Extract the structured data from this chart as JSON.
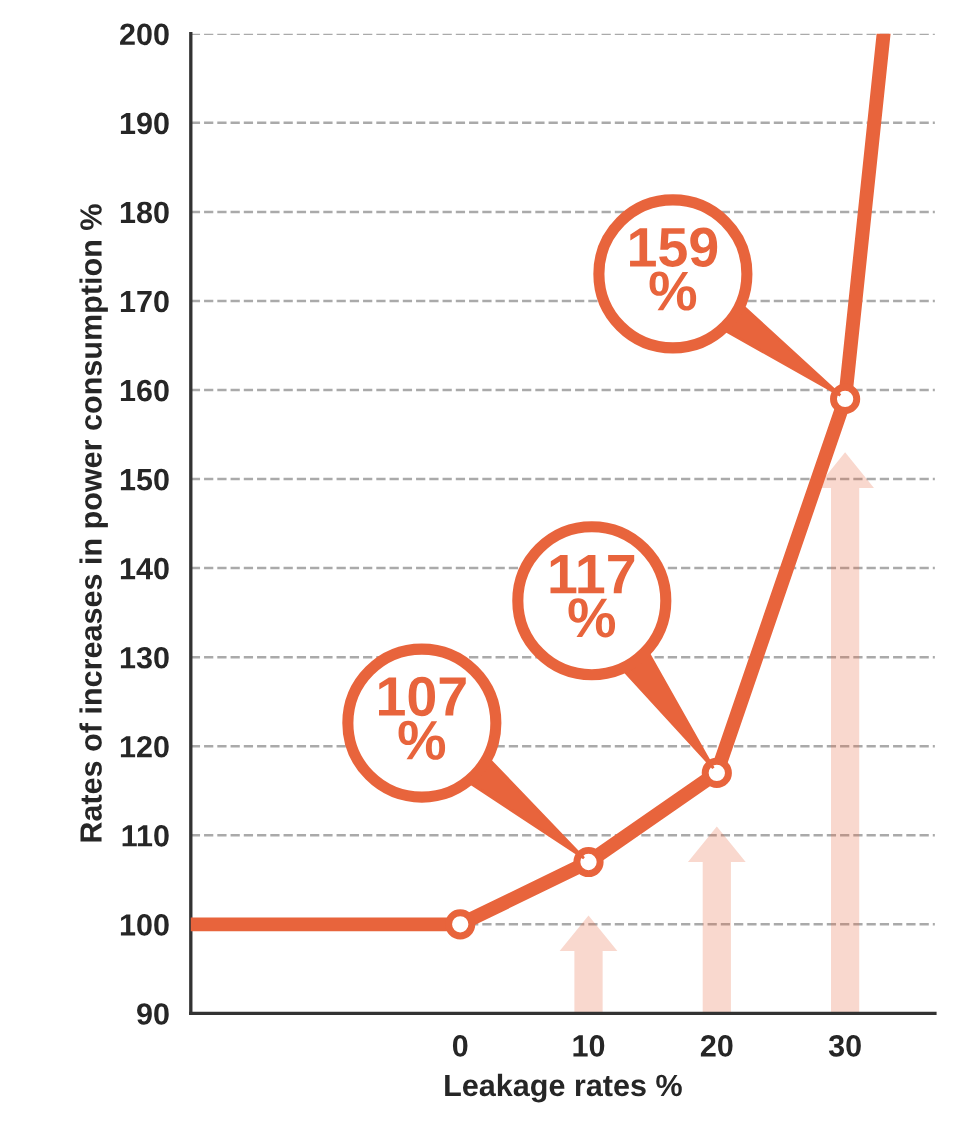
{
  "chart_data": {
    "type": "line",
    "xlabel": "Leakage rates %",
    "ylabel": "Rates of increases in power consumption %",
    "xlim": [
      -21,
      37
    ],
    "xticks": [
      0,
      10,
      20,
      30
    ],
    "ylim": [
      90,
      200
    ],
    "yticks": [
      90,
      100,
      110,
      120,
      130,
      140,
      150,
      160,
      170,
      180,
      190,
      200
    ],
    "grid": "y",
    "line_style": "solid",
    "legend": false,
    "series": [
      {
        "color": "#e8643c",
        "x": [
          -21,
          0,
          10,
          20,
          30,
          33
        ],
        "values": [
          100,
          100,
          107,
          117,
          159,
          200
        ],
        "marker": "none"
      },
      {
        "type": "scatter",
        "color": "#e8643c",
        "x": [
          0,
          10,
          20,
          30
        ],
        "values": [
          100,
          107,
          117,
          159
        ],
        "marker": "circle"
      }
    ],
    "annotations": [
      {
        "text": "107\n%",
        "x": 10,
        "y": 107
      },
      {
        "text": "117\n%",
        "x": 20,
        "y": 117
      },
      {
        "text": "159\n%",
        "x": 30,
        "y": 159
      }
    ]
  }
}
